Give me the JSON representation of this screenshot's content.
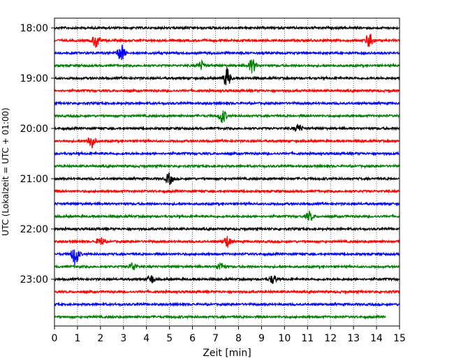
{
  "chart_data": {
    "type": "line",
    "title": "",
    "xlabel": "Zeit  [min]",
    "ylabel": "UTC (Lokalzeit = UTC + 01:00)",
    "xlim": [
      0,
      15
    ],
    "x_ticks": [
      "0",
      "1",
      "2",
      "3",
      "4",
      "5",
      "6",
      "7",
      "8",
      "9",
      "10",
      "11",
      "12",
      "13",
      "14",
      "15"
    ],
    "y_ticks": [
      "18:00",
      "19:00",
      "20:00",
      "21:00",
      "22:00",
      "23:00"
    ],
    "grid": "vertical dotted",
    "row_interval_minutes": 15,
    "colors": [
      "#000000",
      "#ff0000",
      "#0000ff",
      "#008000"
    ],
    "series": [
      {
        "start": "18:00",
        "color": "#000000",
        "events": []
      },
      {
        "start": "18:15",
        "color": "#ff0000",
        "events": [
          [
            1.8,
            0.5
          ],
          [
            13.7,
            0.6
          ]
        ]
      },
      {
        "start": "18:30",
        "color": "#0000ff",
        "events": [
          [
            2.9,
            0.6
          ]
        ]
      },
      {
        "start": "18:45",
        "color": "#008000",
        "events": [
          [
            6.4,
            0.3
          ],
          [
            8.6,
            0.5
          ]
        ]
      },
      {
        "start": "19:00",
        "color": "#000000",
        "events": [
          [
            7.5,
            0.7
          ]
        ]
      },
      {
        "start": "19:15",
        "color": "#ff0000",
        "events": []
      },
      {
        "start": "19:30",
        "color": "#0000ff",
        "events": []
      },
      {
        "start": "19:45",
        "color": "#008000",
        "events": [
          [
            7.3,
            0.5
          ]
        ]
      },
      {
        "start": "20:00",
        "color": "#000000",
        "events": [
          [
            10.6,
            0.3
          ]
        ]
      },
      {
        "start": "20:15",
        "color": "#ff0000",
        "events": [
          [
            1.6,
            0.5
          ]
        ]
      },
      {
        "start": "20:30",
        "color": "#0000ff",
        "events": []
      },
      {
        "start": "20:45",
        "color": "#008000",
        "events": []
      },
      {
        "start": "21:00",
        "color": "#000000",
        "events": [
          [
            5.0,
            0.4
          ]
        ]
      },
      {
        "start": "21:15",
        "color": "#ff0000",
        "events": []
      },
      {
        "start": "21:30",
        "color": "#0000ff",
        "events": []
      },
      {
        "start": "21:45",
        "color": "#008000",
        "events": [
          [
            11.1,
            0.3
          ]
        ]
      },
      {
        "start": "22:00",
        "color": "#000000",
        "events": []
      },
      {
        "start": "22:15",
        "color": "#ff0000",
        "events": [
          [
            2.0,
            0.3
          ],
          [
            7.5,
            0.4
          ]
        ]
      },
      {
        "start": "22:30",
        "color": "#0000ff",
        "events": [
          [
            0.9,
            0.8
          ]
        ]
      },
      {
        "start": "22:45",
        "color": "#008000",
        "events": [
          [
            3.4,
            0.3
          ],
          [
            7.2,
            0.3
          ]
        ]
      },
      {
        "start": "23:00",
        "color": "#000000",
        "events": [
          [
            4.2,
            0.3
          ],
          [
            9.5,
            0.3
          ]
        ]
      },
      {
        "start": "23:15",
        "color": "#ff0000",
        "events": []
      },
      {
        "start": "23:30",
        "color": "#0000ff",
        "events": []
      },
      {
        "start": "23:45",
        "color": "#008000",
        "end_minute": 14.4,
        "events": []
      }
    ]
  }
}
